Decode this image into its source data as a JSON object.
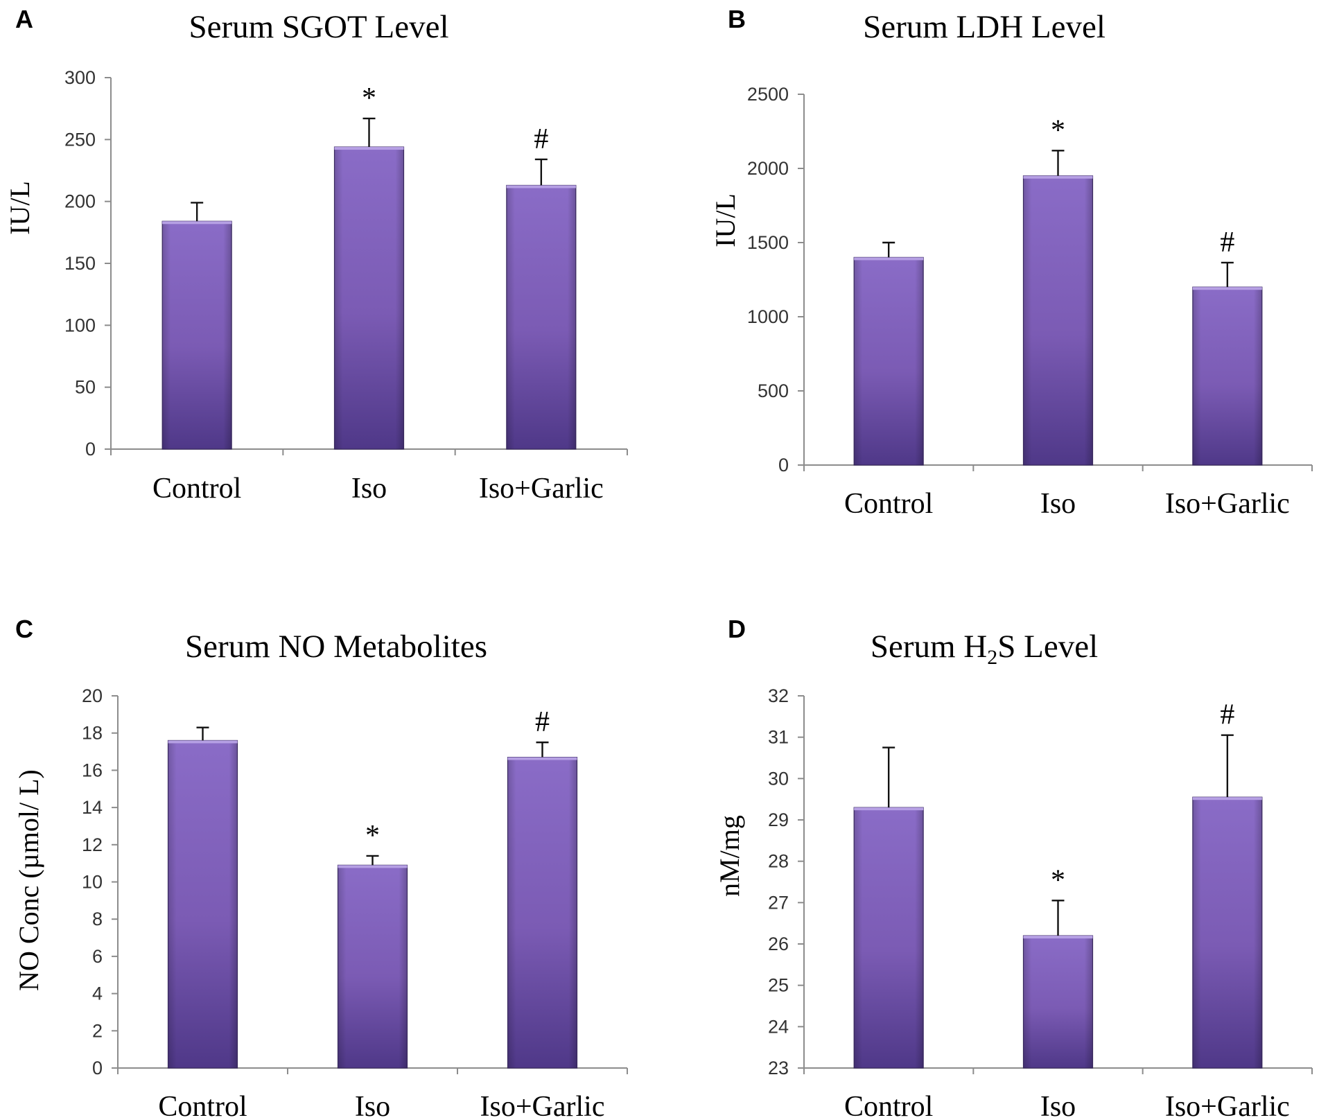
{
  "colors": {
    "bar_top": "#8a6cc7",
    "bar_mid": "#7b5bb4",
    "bar_bottom": "#4f3888",
    "bar_cap": "#b6a0e4",
    "axis": "#8c8c8c",
    "text": "#000000"
  },
  "chart_data": [
    {
      "type": "bar",
      "panel": "A",
      "title": "Serum SGOT Level",
      "xlabel": "",
      "ylabel": "IU/L",
      "categories": [
        "Control",
        "Iso",
        "Iso+Garlic"
      ],
      "values": [
        184,
        244,
        213
      ],
      "errors": [
        15,
        23,
        21
      ],
      "significance": [
        "",
        "*",
        "#"
      ],
      "ylim": [
        0,
        300
      ],
      "ytick_step": 50,
      "ytick_labels": [
        "0",
        "50",
        "100",
        "150",
        "200",
        "250",
        "300"
      ],
      "grid": false
    },
    {
      "type": "bar",
      "panel": "B",
      "title": "Serum LDH Level",
      "xlabel": "",
      "ylabel": "IU/L",
      "categories": [
        "Control",
        "Iso",
        "Iso+Garlic"
      ],
      "values": [
        1400,
        1950,
        1200
      ],
      "errors": [
        100,
        170,
        165
      ],
      "significance": [
        "",
        "*",
        "#"
      ],
      "ylim": [
        0,
        2500
      ],
      "ytick_step": 500,
      "ytick_labels": [
        "0",
        "500",
        "1000",
        "1500",
        "2000",
        "2500"
      ],
      "grid": false
    },
    {
      "type": "bar",
      "panel": "C",
      "title": "Serum NO Metabolites",
      "xlabel": "",
      "ylabel": "NO Conc (µmol/ L)",
      "categories": [
        "Control",
        "Iso",
        "Iso+Garlic"
      ],
      "values": [
        17.6,
        10.9,
        16.7
      ],
      "errors": [
        0.7,
        0.5,
        0.8
      ],
      "significance": [
        "",
        "*",
        "#"
      ],
      "ylim": [
        0,
        20
      ],
      "ytick_step": 2,
      "ytick_labels": [
        "0",
        "2",
        "4",
        "6",
        "8",
        "10",
        "12",
        "14",
        "16",
        "18",
        "20"
      ],
      "grid": false
    },
    {
      "type": "bar",
      "panel": "D",
      "title": "Serum H2S Level",
      "title_parts": [
        "Serum H",
        "2",
        "S Level"
      ],
      "xlabel": "",
      "ylabel": "nM/mg",
      "categories": [
        "Control",
        "Iso",
        "Iso+Garlic"
      ],
      "values": [
        29.3,
        26.2,
        29.55
      ],
      "errors": [
        1.45,
        0.85,
        1.5
      ],
      "significance": [
        "",
        "*",
        "#"
      ],
      "ylim": [
        23,
        32
      ],
      "ytick_step": 1,
      "ytick_labels": [
        "23",
        "24",
        "25",
        "26",
        "27",
        "28",
        "29",
        "30",
        "31",
        "32"
      ],
      "grid": false
    }
  ]
}
